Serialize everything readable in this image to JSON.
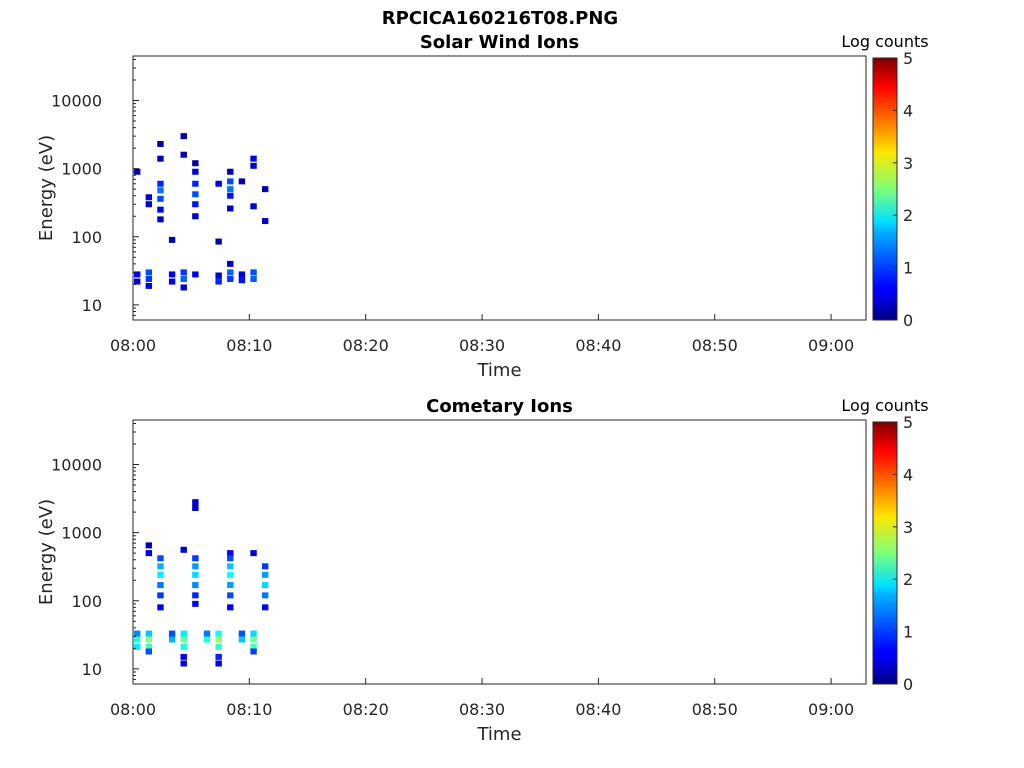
{
  "figure_title": "RPCICA160216T08.PNG",
  "chart_data": [
    {
      "type": "heatmap",
      "title": "Solar Wind Ions",
      "xlabel": "Time",
      "ylabel": "Energy (eV)",
      "x_ticks": [
        "08:00",
        "08:10",
        "08:20",
        "08:30",
        "08:40",
        "08:50",
        "09:00"
      ],
      "xlim": [
        "08:00",
        "09:03"
      ],
      "y_scale": "log",
      "y_ticks": [
        "10",
        "100",
        "1000",
        "10000"
      ],
      "ylim": [
        6,
        45000
      ],
      "colorbar": {
        "label": "Log counts",
        "range": [
          0,
          5
        ],
        "ticks": [
          "0",
          "1",
          "2",
          "3",
          "4",
          "5"
        ],
        "colormap": "jet"
      },
      "cells": [
        [
          "08:00",
          28,
          0.6
        ],
        [
          "08:00",
          22,
          0.4
        ],
        [
          "08:01",
          30,
          1.0
        ],
        [
          "08:01",
          24,
          0.9
        ],
        [
          "08:01",
          19,
          0.5
        ],
        [
          "08:01",
          380,
          0.4
        ],
        [
          "08:01",
          300,
          0.3
        ],
        [
          "08:02",
          600,
          0.8
        ],
        [
          "08:02",
          480,
          1.2
        ],
        [
          "08:02",
          360,
          1.0
        ],
        [
          "08:02",
          250,
          0.6
        ],
        [
          "08:02",
          180,
          0.3
        ],
        [
          "08:02",
          1400,
          0.3
        ],
        [
          "08:02",
          2300,
          0.2
        ],
        [
          "08:00",
          900,
          0.3
        ],
        [
          "08:03",
          90,
          0.2
        ],
        [
          "08:03",
          28,
          0.5
        ],
        [
          "08:03",
          22,
          0.6
        ],
        [
          "08:04",
          30,
          0.9
        ],
        [
          "08:04",
          24,
          1.1
        ],
        [
          "08:04",
          18,
          0.4
        ],
        [
          "08:04",
          1600,
          0.3
        ],
        [
          "08:04",
          3000,
          0.2
        ],
        [
          "08:05",
          900,
          0.5
        ],
        [
          "08:05",
          600,
          0.8
        ],
        [
          "08:05",
          420,
          1.0
        ],
        [
          "08:05",
          300,
          0.7
        ],
        [
          "08:05",
          200,
          0.4
        ],
        [
          "08:05",
          1200,
          0.2
        ],
        [
          "08:05",
          28,
          0.6
        ],
        [
          "08:07",
          27,
          0.4
        ],
        [
          "08:07",
          22,
          0.8
        ],
        [
          "08:07",
          600,
          0.5
        ],
        [
          "08:07",
          85,
          0.2
        ],
        [
          "08:08",
          30,
          1.1
        ],
        [
          "08:08",
          24,
          0.9
        ],
        [
          "08:08",
          40,
          0.3
        ],
        [
          "08:08",
          650,
          1.0
        ],
        [
          "08:08",
          500,
          1.2
        ],
        [
          "08:08",
          400,
          0.7
        ],
        [
          "08:08",
          260,
          0.3
        ],
        [
          "08:08",
          900,
          0.3
        ],
        [
          "08:09",
          28,
          0.5
        ],
        [
          "08:09",
          23,
          0.7
        ],
        [
          "08:10",
          30,
          1.0
        ],
        [
          "08:10",
          24,
          1.1
        ],
        [
          "08:10",
          280,
          0.4
        ],
        [
          "08:10",
          1400,
          0.5
        ],
        [
          "08:10",
          1100,
          0.4
        ],
        [
          "08:11",
          500,
          0.2
        ],
        [
          "08:11",
          170,
          0.3
        ],
        [
          "08:09",
          650,
          0.2
        ]
      ]
    },
    {
      "type": "heatmap",
      "title": "Cometary Ions",
      "xlabel": "Time",
      "ylabel": "Energy (eV)",
      "x_ticks": [
        "08:00",
        "08:10",
        "08:20",
        "08:30",
        "08:40",
        "08:50",
        "09:00"
      ],
      "xlim": [
        "08:00",
        "09:03"
      ],
      "y_scale": "log",
      "y_ticks": [
        "10",
        "100",
        "1000",
        "10000"
      ],
      "ylim": [
        6,
        45000
      ],
      "colorbar": {
        "label": "Log counts",
        "range": [
          0,
          5
        ],
        "ticks": [
          "0",
          "1",
          "2",
          "3",
          "4",
          "5"
        ],
        "colormap": "jet"
      },
      "cells": [
        [
          "08:00",
          33,
          1.3
        ],
        [
          "08:00",
          27,
          2.0
        ],
        [
          "08:00",
          21,
          1.8
        ],
        [
          "08:01",
          33,
          1.6
        ],
        [
          "08:01",
          27,
          2.5
        ],
        [
          "08:01",
          21,
          2.2
        ],
        [
          "08:01",
          18,
          1.0
        ],
        [
          "08:01",
          500,
          0.5
        ],
        [
          "08:01",
          650,
          0.3
        ],
        [
          "08:02",
          420,
          1.0
        ],
        [
          "08:02",
          320,
          1.5
        ],
        [
          "08:02",
          240,
          1.8
        ],
        [
          "08:02",
          170,
          1.2
        ],
        [
          "08:02",
          120,
          0.9
        ],
        [
          "08:02",
          80,
          0.6
        ],
        [
          "08:03",
          27,
          1.5
        ],
        [
          "08:03",
          33,
          1.0
        ],
        [
          "08:04",
          33,
          1.8
        ],
        [
          "08:04",
          27,
          2.4
        ],
        [
          "08:04",
          21,
          2.0
        ],
        [
          "08:04",
          15,
          0.6
        ],
        [
          "08:04",
          12,
          0.5
        ],
        [
          "08:04",
          560,
          0.4
        ],
        [
          "08:05",
          420,
          0.9
        ],
        [
          "08:05",
          320,
          1.4
        ],
        [
          "08:05",
          240,
          1.7
        ],
        [
          "08:05",
          170,
          1.3
        ],
        [
          "08:05",
          120,
          0.8
        ],
        [
          "08:05",
          90,
          0.6
        ],
        [
          "08:05",
          2800,
          0.4
        ],
        [
          "08:05",
          2300,
          0.3
        ],
        [
          "08:06",
          33,
          1.2
        ],
        [
          "08:06",
          27,
          2.0
        ],
        [
          "08:07",
          33,
          1.9
        ],
        [
          "08:07",
          27,
          2.6
        ],
        [
          "08:07",
          21,
          2.1
        ],
        [
          "08:07",
          15,
          0.8
        ],
        [
          "08:07",
          12,
          0.5
        ],
        [
          "08:08",
          500,
          0.6
        ],
        [
          "08:08",
          420,
          1.0
        ],
        [
          "08:08",
          320,
          1.6
        ],
        [
          "08:08",
          240,
          1.9
        ],
        [
          "08:08",
          170,
          1.4
        ],
        [
          "08:08",
          120,
          1.0
        ],
        [
          "08:08",
          80,
          0.6
        ],
        [
          "08:09",
          33,
          1.0
        ],
        [
          "08:09",
          27,
          1.6
        ],
        [
          "08:10",
          33,
          1.7
        ],
        [
          "08:10",
          27,
          2.4
        ],
        [
          "08:10",
          21,
          2.2
        ],
        [
          "08:10",
          18,
          0.9
        ],
        [
          "08:10",
          500,
          0.4
        ],
        [
          "08:11",
          320,
          0.9
        ],
        [
          "08:11",
          240,
          1.4
        ],
        [
          "08:11",
          170,
          1.7
        ],
        [
          "08:11",
          120,
          1.2
        ],
        [
          "08:11",
          80,
          0.6
        ]
      ]
    }
  ]
}
